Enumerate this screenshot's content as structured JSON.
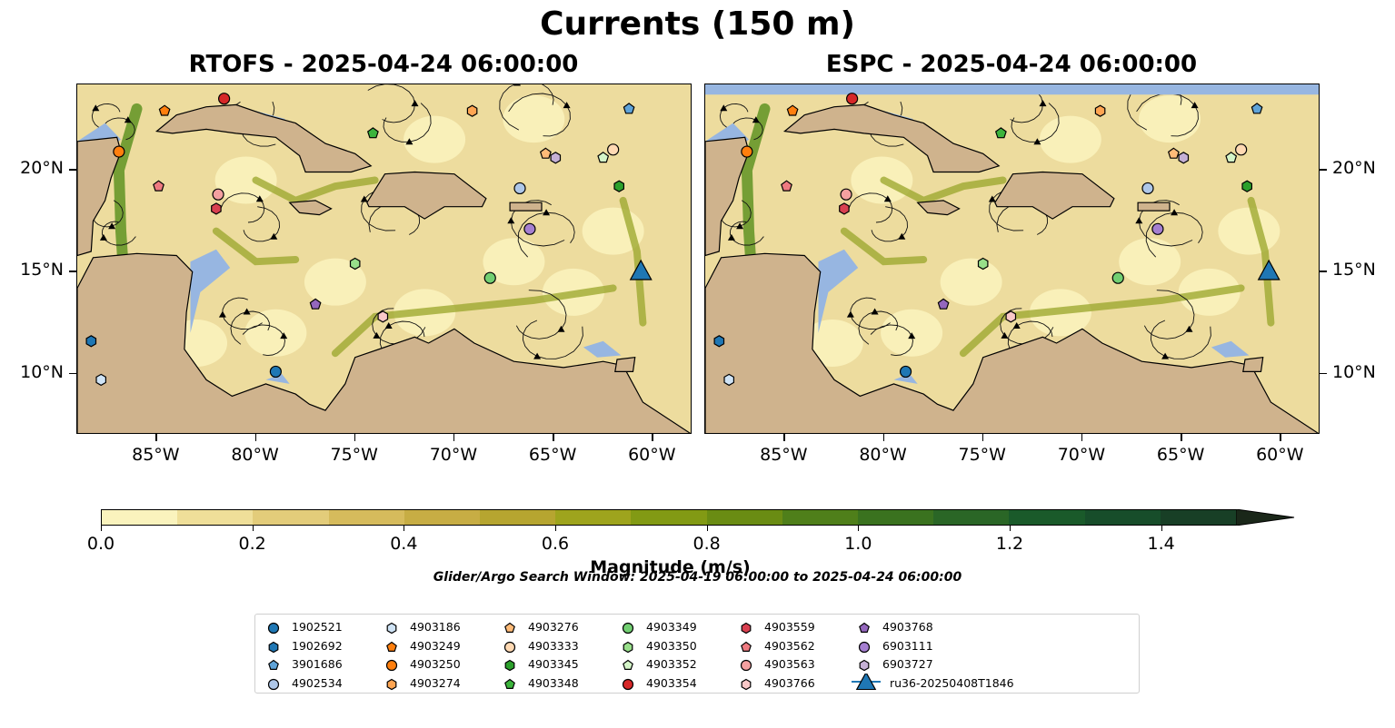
{
  "title": "Currents (150 m)",
  "panels": [
    {
      "title": "RTOFS - 2025-04-24 06:00:00"
    },
    {
      "title": "ESPC - 2025-04-24 06:00:00"
    }
  ],
  "map_extent": {
    "lon": [
      -89,
      -58
    ],
    "lat": [
      7,
      24.2
    ]
  },
  "lon_ticks": [
    "85°W",
    "80°W",
    "75°W",
    "70°W",
    "65°W",
    "60°W"
  ],
  "lat_ticks": [
    "20°N",
    "15°N",
    "10°N"
  ],
  "colors": {
    "ocean": "#97b6e1",
    "land": "#cfb38d",
    "low_speed": "#faf3bd",
    "high_speed": "#1f6b1f"
  },
  "colorbar": {
    "label": "Magnitude (m/s)",
    "ticks": [
      "0.0",
      "0.2",
      "0.4",
      "0.6",
      "0.8",
      "1.0",
      "1.2",
      "1.4"
    ],
    "range": [
      0.0,
      1.5
    ],
    "colors": [
      "#faf3bd",
      "#efdf99",
      "#e3cc7a",
      "#d6bb5c",
      "#c7ad44",
      "#b6a530",
      "#9ea41d",
      "#829a14",
      "#6a8c13",
      "#4f7f1a",
      "#3a721f",
      "#2a6626",
      "#1a5a2a",
      "#174d2a",
      "#183f26",
      "#1a3220",
      "#1a2719"
    ]
  },
  "search_window": "Glider/Argo Search Window: 2025-04-19 06:00:00 to 2025-04-24 06:00:00",
  "legend": [
    {
      "label": "1902521",
      "color": "#1f77b4",
      "marker": "circle"
    },
    {
      "label": "1902692",
      "color": "#1f77b4",
      "marker": "hexagon"
    },
    {
      "label": "3901686",
      "color": "#5fa3d8",
      "marker": "pentagon"
    },
    {
      "label": "4902534",
      "color": "#aec7e8",
      "marker": "circle"
    },
    {
      "label": "4903186",
      "color": "#cfe3f5",
      "marker": "hexagon"
    },
    {
      "label": "4903249",
      "color": "#ff7f0e",
      "marker": "pentagon"
    },
    {
      "label": "4903250",
      "color": "#ff7f0e",
      "marker": "circle"
    },
    {
      "label": "4903274",
      "color": "#ffa552",
      "marker": "hexagon"
    },
    {
      "label": "4903276",
      "color": "#ffbb78",
      "marker": "pentagon"
    },
    {
      "label": "4903333",
      "color": "#ffd9b3",
      "marker": "circle"
    },
    {
      "label": "4903345",
      "color": "#2ca02c",
      "marker": "hexagon"
    },
    {
      "label": "4903348",
      "color": "#3cb43c",
      "marker": "pentagon"
    },
    {
      "label": "4903349",
      "color": "#72cf72",
      "marker": "circle"
    },
    {
      "label": "4903350",
      "color": "#98df8a",
      "marker": "hexagon"
    },
    {
      "label": "4903352",
      "color": "#d4f5c8",
      "marker": "pentagon"
    },
    {
      "label": "4903354",
      "color": "#d62728",
      "marker": "circle"
    },
    {
      "label": "4903559",
      "color": "#d94050",
      "marker": "hexagon"
    },
    {
      "label": "4903562",
      "color": "#ee7a80",
      "marker": "pentagon"
    },
    {
      "label": "4903563",
      "color": "#f4a0a0",
      "marker": "circle"
    },
    {
      "label": "4903766",
      "color": "#f9c8c8",
      "marker": "hexagon"
    },
    {
      "label": "4903768",
      "color": "#9467bd",
      "marker": "pentagon"
    },
    {
      "label": "6903111",
      "color": "#a57fd0",
      "marker": "circle"
    },
    {
      "label": "6903727",
      "color": "#c5b0d5",
      "marker": "hexagon"
    },
    {
      "label": "ru36-20250408T1846",
      "color": "#1f77b4",
      "marker": "triangle"
    }
  ],
  "floats": [
    {
      "id": "1902521",
      "lon": -79.0,
      "lat": 10.1
    },
    {
      "id": "1902692",
      "lon": -88.3,
      "lat": 11.6
    },
    {
      "id": "3901686",
      "lon": -61.2,
      "lat": 23.0
    },
    {
      "id": "4902534",
      "lon": -66.7,
      "lat": 19.1
    },
    {
      "id": "4903186",
      "lon": -87.8,
      "lat": 9.7
    },
    {
      "id": "4903249",
      "lon": -84.6,
      "lat": 22.9
    },
    {
      "id": "4903250",
      "lon": -86.9,
      "lat": 20.9
    },
    {
      "id": "4903274",
      "lon": -69.1,
      "lat": 22.9
    },
    {
      "id": "4903276",
      "lon": -65.4,
      "lat": 20.8
    },
    {
      "id": "4903333",
      "lon": -62.0,
      "lat": 21.0
    },
    {
      "id": "4903345",
      "lon": -61.7,
      "lat": 19.2
    },
    {
      "id": "4903348",
      "lon": -74.1,
      "lat": 21.8
    },
    {
      "id": "4903349",
      "lon": -68.2,
      "lat": 14.7
    },
    {
      "id": "4903350",
      "lon": -75.0,
      "lat": 15.4
    },
    {
      "id": "4903352",
      "lon": -62.5,
      "lat": 20.6
    },
    {
      "id": "4903354",
      "lon": -81.6,
      "lat": 23.5
    },
    {
      "id": "4903559",
      "lon": -82.0,
      "lat": 18.1
    },
    {
      "id": "4903562",
      "lon": -84.9,
      "lat": 19.2
    },
    {
      "id": "4903563",
      "lon": -81.9,
      "lat": 18.8
    },
    {
      "id": "4903766",
      "lon": -73.6,
      "lat": 12.8
    },
    {
      "id": "4903768",
      "lon": -77.0,
      "lat": 13.4
    },
    {
      "id": "6903111",
      "lon": -66.2,
      "lat": 17.1
    },
    {
      "id": "6903727",
      "lon": -64.9,
      "lat": 20.6
    },
    {
      "id": "ru36-20250408T1846",
      "lon": -60.6,
      "lat": 15.0
    }
  ]
}
